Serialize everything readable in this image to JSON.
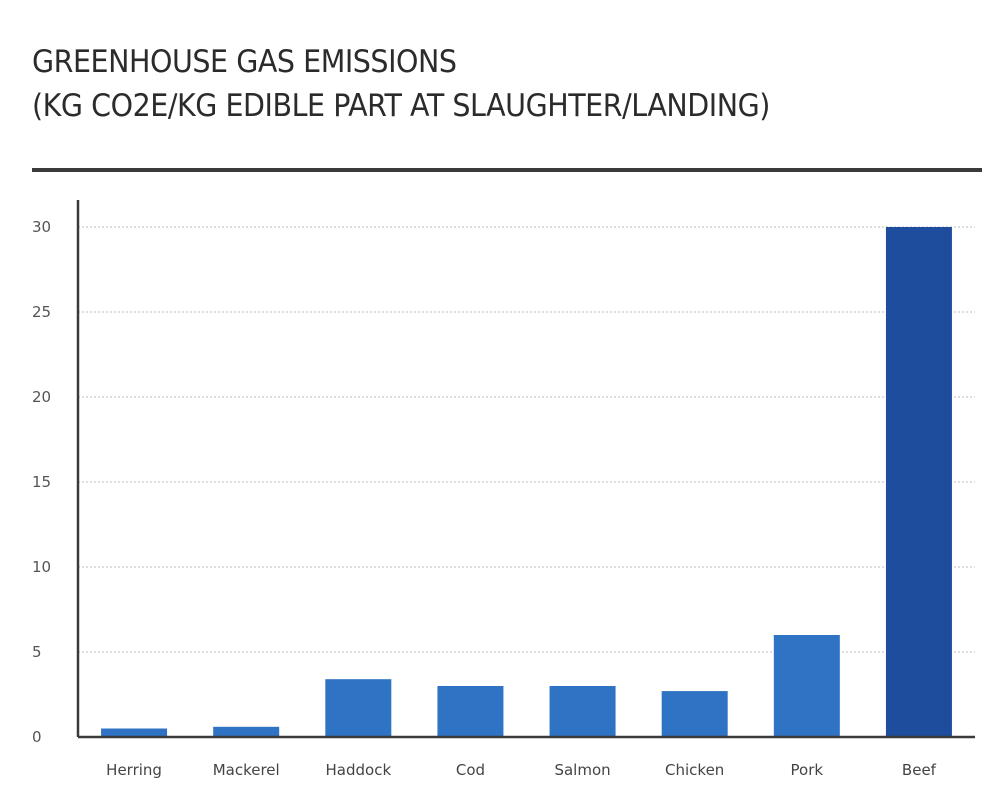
{
  "chart_data": {
    "type": "bar",
    "title_lines": [
      "GREENHOUSE GAS EMISSIONS",
      "(KG CO2E/KG EDIBLE PART AT SLAUGHTER/LANDING)"
    ],
    "categories": [
      "Herring",
      "Mackerel",
      "Haddock",
      "Cod",
      "Salmon",
      "Chicken",
      "Pork",
      "Beef"
    ],
    "values": [
      0.5,
      0.6,
      3.4,
      3.0,
      3.0,
      2.7,
      6.0,
      30
    ],
    "ylim": [
      0,
      30
    ],
    "yticks": [
      0,
      5,
      10,
      15,
      20,
      25,
      30
    ],
    "grid": true,
    "colors": {
      "bar": "#2f73c5",
      "highlight_bar": "#1f4d9e",
      "grid": "#d0d4d8",
      "axis": "#3a3a3a"
    }
  }
}
